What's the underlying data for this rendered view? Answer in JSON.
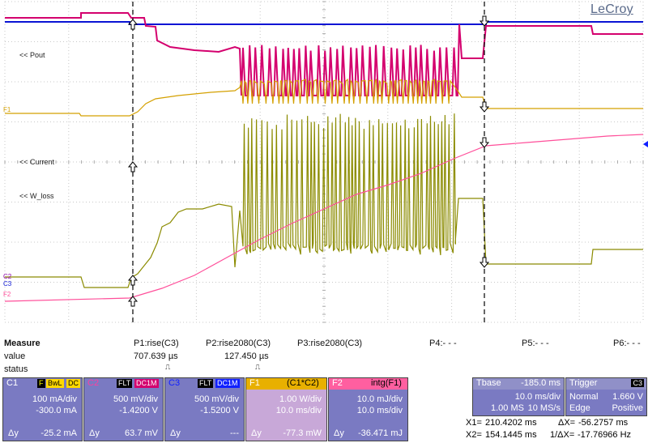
{
  "brand": "LeCroy",
  "trace_labels": {
    "pout": "<< Pout",
    "current": "<< Current",
    "w_loss": "<< W_loss",
    "f1": "F1",
    "c2": "C2",
    "c3": "C3",
    "f2": "F2"
  },
  "cursors": [
    "P1",
    "P2",
    "P3",
    "P4",
    "P5",
    "P6"
  ],
  "measure": {
    "title": "Measure",
    "value_label": "value",
    "status_label": "status",
    "params": [
      {
        "name": "P1:rise(C3)",
        "value": "707.639 µs"
      },
      {
        "name": "P2:rise2080(C3)",
        "value": "127.450 µs"
      },
      {
        "name": "P3:rise2080(C3)",
        "value": ""
      },
      {
        "name": "P4:- - -",
        "value": ""
      },
      {
        "name": "P5:- - -",
        "value": ""
      },
      {
        "name": "P6:- - -",
        "value": ""
      }
    ]
  },
  "channels": [
    {
      "id": "C1",
      "tags": [
        "F",
        "BwL",
        "DC"
      ],
      "line1": "100 mA/div",
      "line2": "-300.0 mA",
      "dy": "Δy",
      "dy_value": "-25.2 mA",
      "color": "#7a7ac2"
    },
    {
      "id": "C2",
      "tags": [
        "FLT",
        "DC1M"
      ],
      "line1": "500 mV/div",
      "line2": "-1.4200 V",
      "dy": "Δy",
      "dy_value": "63.7 mV",
      "color": "#7a7ac2"
    },
    {
      "id": "C3",
      "tags": [
        "FLT",
        "DC1M"
      ],
      "line1": "500 mV/div",
      "line2": "-1.5200 V",
      "dy": "Δy",
      "dy_value": "---",
      "color": "#7a7ac2"
    },
    {
      "id": "F1",
      "tags": [
        "(C1*C2)"
      ],
      "line1": "1.00 W/div",
      "line2": "10.0 ms/div",
      "dy": "Δy",
      "dy_value": "-77.3 mW",
      "color": "#c8a8d8"
    },
    {
      "id": "F2",
      "tags": [
        "intg(F1)"
      ],
      "line1": "10.0 mJ/div",
      "line2": "10.0 ms/div",
      "dy": "Δy",
      "dy_value": "-36.471 mJ",
      "color": "#7a7ac2"
    }
  ],
  "timebase": {
    "label": "Tbase",
    "offset": "-185.0 ms",
    "div": "10.0 ms/div",
    "pts": "1.00 MS",
    "rate": "10 MS/s"
  },
  "trigger": {
    "label": "Trigger",
    "src": "C3",
    "mode": "Normal",
    "level": "1.660 V",
    "type": "Edge",
    "slope": "Positive"
  },
  "cursor_readout": {
    "x1_label": "X1=",
    "x1": "210.4202 ms",
    "dx_label": "ΔX=",
    "dx": "-56.2757 ms",
    "x2_label": "X2=",
    "x2": "154.1445 ms",
    "inv_label": "1/ΔX=",
    "inv": "-17.76966 Hz"
  },
  "colors": {
    "c1": "#8b8b00",
    "c2": "#d4006e",
    "c3": "#0a14d4",
    "f1": "#d4a000",
    "f2": "#ff4f9a",
    "grid": "#c8c8c8",
    "panel": "#7a7ac2"
  }
}
